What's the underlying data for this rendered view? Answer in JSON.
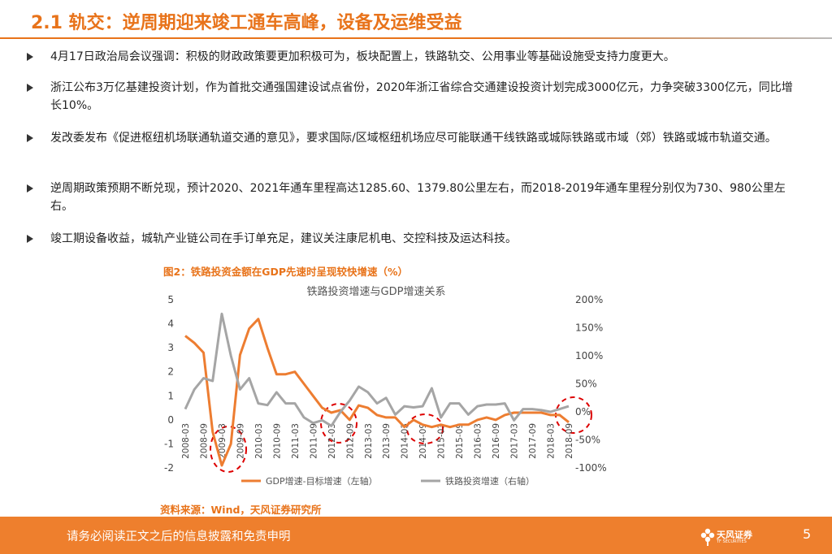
{
  "header": {
    "title": "2.1 轨交：逆周期迎来竣工通车高峰，设备及运维受益"
  },
  "bullets": [
    "4月17日政治局会议强调：积极的财政政策要更加积极可为，板块配置上，铁路轨交、公用事业等基础设施受支持力度更大。",
    "浙江公布3万亿基建投资计划，作为首批交通强国建设试点省份，2020年浙江省综合交通建设投资计划完成3000亿元，力争突破3300亿元，同比增长10%。",
    "发改委发布《促进枢纽机场联通轨道交通的意见》，要求国际/区域枢纽机场应尽可能联通干线铁路或城际铁路或市域（郊）铁路或城市轨道交通。",
    "逆周期政策预期不断兑现，预计2020、2021年通车里程高达1285.60、1379.80公里左右，而2018-2019年通车里程分别仅为730、980公里左右。",
    "竣工期设备收益，城轨产业链公司在手订单充足，建议关注康尼机电、交控科技及运达科技。"
  ],
  "figure": {
    "caption": "图2：铁路投资金额在GDP先速时呈现较快增速（%）",
    "source": "资料来源：Wind，天风证券研究所"
  },
  "chart_data": {
    "type": "line",
    "title": "铁路投资增速与GDP增速关系",
    "categories": [
      "2008-03",
      null,
      "2008-09",
      null,
      "2009-03",
      null,
      "2009-09",
      null,
      "2010-03",
      null,
      "2010-09",
      null,
      "2011-03",
      null,
      "2011-09",
      null,
      "2012-03",
      null,
      "2012-09",
      null,
      "2013-03",
      null,
      "2013-09",
      null,
      "2014-03",
      null,
      "2014-09",
      null,
      "2015-03",
      null,
      "2015-09",
      null,
      "2016-03",
      null,
      "2016-09",
      null,
      "2017-03",
      null,
      "2017-09",
      null,
      "2018-03",
      null,
      "2018-09"
    ],
    "series": [
      {
        "name": "GDP增速-目标增速（左轴）",
        "color": "#ed7d31",
        "axis": "y",
        "values": [
          3.5,
          3.2,
          2.8,
          -0.5,
          -1.9,
          -1.0,
          2.7,
          3.8,
          4.2,
          3.0,
          1.9,
          1.9,
          2.0,
          1.5,
          1.0,
          0.5,
          0.3,
          0.4,
          0.0,
          0.6,
          0.5,
          0.2,
          0.1,
          0.1,
          -0.3,
          0.0,
          -0.2,
          -0.3,
          -0.2,
          -0.3,
          -0.2,
          -0.2,
          0.0,
          0.1,
          0.0,
          0.2,
          0.3,
          0.3,
          0.3,
          0.3,
          0.2,
          0.2,
          -0.1
        ]
      },
      {
        "name": "铁路投资增速（右轴）",
        "color": "#a5a5a5",
        "axis": "y2",
        "values": [
          5,
          40,
          60,
          55,
          175,
          100,
          40,
          60,
          15,
          12,
          35,
          15,
          15,
          -10,
          -20,
          -15,
          -25,
          0,
          20,
          45,
          35,
          15,
          25,
          -5,
          10,
          8,
          10,
          42,
          -10,
          15,
          15,
          -5,
          10,
          13,
          13,
          15,
          -15,
          5,
          5,
          3,
          0,
          5,
          10
        ]
      }
    ],
    "ylim": [
      -2,
      5
    ],
    "yticks": [
      -2,
      -1,
      0,
      1,
      2,
      3,
      4,
      5
    ],
    "y2lim": [
      -100,
      200
    ],
    "y2ticks": [
      {
        "value": -100,
        "label": "-100%"
      },
      {
        "value": -50,
        "label": "-50%"
      },
      {
        "value": 0,
        "label": "0%"
      },
      {
        "value": 50,
        "label": "50%"
      },
      {
        "value": 100,
        "label": "100%"
      },
      {
        "value": 150,
        "label": "150%"
      },
      {
        "value": 200,
        "label": "200%"
      }
    ],
    "grid": false,
    "legend": "bottom"
  },
  "footer": {
    "disclaimer": "请务必阅读正文之后的信息披露和免责申明",
    "logo_text": "天风证券",
    "logo_sub": "TF SECURITIES",
    "page_number": "5"
  }
}
